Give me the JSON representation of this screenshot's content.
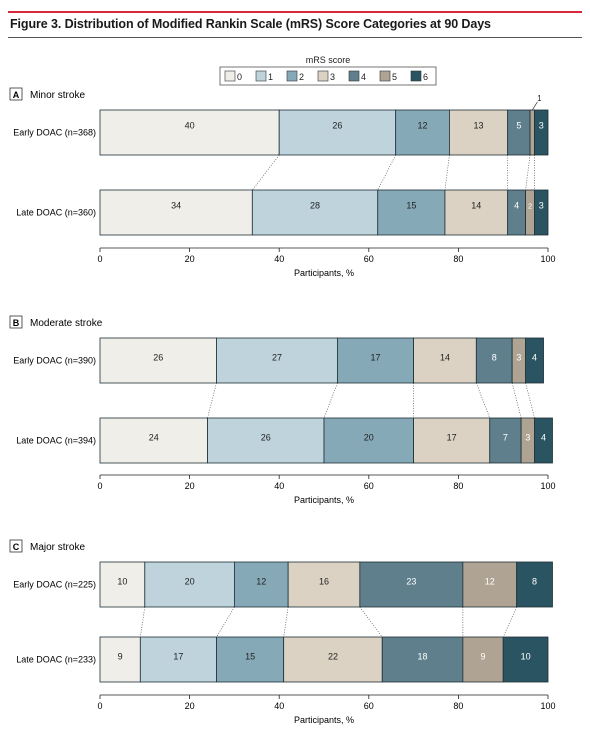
{
  "figure": {
    "title": "Figure 3. Distribution of Modified Rankin Scale (mRS) Score Categories at 90 Days"
  },
  "legend": {
    "title": "mRS score",
    "items": [
      {
        "label": "0",
        "color": "#efeee8"
      },
      {
        "label": "1",
        "color": "#bfd3dd"
      },
      {
        "label": "2",
        "color": "#86a9b8"
      },
      {
        "label": "3",
        "color": "#dbd2c3"
      },
      {
        "label": "4",
        "color": "#5f7f8d"
      },
      {
        "label": "5",
        "color": "#afa493"
      },
      {
        "label": "6",
        "color": "#2a5462"
      }
    ]
  },
  "chart_data": [
    {
      "type": "bar",
      "orientation": "horizontal",
      "stacked": true,
      "panel_letter": "A",
      "title": "Minor stroke",
      "categories": [
        "Early DOAC (n=368)",
        "Late DOAC (n=360)"
      ],
      "series": [
        {
          "name": "0",
          "values": [
            40,
            34
          ]
        },
        {
          "name": "1",
          "values": [
            26,
            28
          ]
        },
        {
          "name": "2",
          "values": [
            12,
            15
          ]
        },
        {
          "name": "3",
          "values": [
            13,
            14
          ]
        },
        {
          "name": "4",
          "values": [
            5,
            4
          ]
        },
        {
          "name": "5",
          "values": [
            1,
            2
          ]
        },
        {
          "name": "6",
          "values": [
            3,
            3
          ]
        }
      ],
      "xlabel": "Participants, %",
      "xlim": [
        0,
        100
      ],
      "xticks": [
        "0",
        "20",
        "40",
        "60",
        "80",
        "100"
      ]
    },
    {
      "type": "bar",
      "orientation": "horizontal",
      "stacked": true,
      "panel_letter": "B",
      "title": "Moderate stroke",
      "categories": [
        "Early DOAC (n=390)",
        "Late DOAC (n=394)"
      ],
      "series": [
        {
          "name": "0",
          "values": [
            26,
            24
          ]
        },
        {
          "name": "1",
          "values": [
            27,
            26
          ]
        },
        {
          "name": "2",
          "values": [
            17,
            20
          ]
        },
        {
          "name": "3",
          "values": [
            14,
            17
          ]
        },
        {
          "name": "4",
          "values": [
            8,
            7
          ]
        },
        {
          "name": "5",
          "values": [
            3,
            3
          ]
        },
        {
          "name": "6",
          "values": [
            4,
            4
          ]
        }
      ],
      "xlabel": "Participants, %",
      "xlim": [
        0,
        100
      ],
      "xticks": [
        "0",
        "20",
        "40",
        "60",
        "80",
        "100"
      ]
    },
    {
      "type": "bar",
      "orientation": "horizontal",
      "stacked": true,
      "panel_letter": "C",
      "title": "Major stroke",
      "categories": [
        "Early DOAC (n=225)",
        "Late DOAC (n=233)"
      ],
      "series": [
        {
          "name": "0",
          "values": [
            10,
            9
          ]
        },
        {
          "name": "1",
          "values": [
            20,
            17
          ]
        },
        {
          "name": "2",
          "values": [
            12,
            15
          ]
        },
        {
          "name": "3",
          "values": [
            16,
            22
          ]
        },
        {
          "name": "4",
          "values": [
            23,
            18
          ]
        },
        {
          "name": "5",
          "values": [
            12,
            9
          ]
        },
        {
          "name": "6",
          "values": [
            8,
            10
          ]
        }
      ],
      "xlabel": "Participants, %",
      "xlim": [
        0,
        100
      ],
      "xticks": [
        "0",
        "20",
        "40",
        "60",
        "80",
        "100"
      ]
    }
  ]
}
